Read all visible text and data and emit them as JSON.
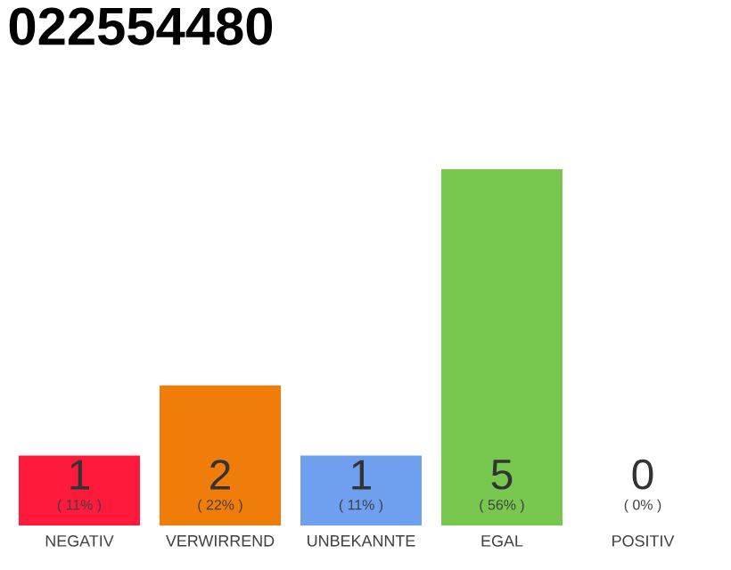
{
  "chart_data": {
    "type": "bar",
    "title": "022554480",
    "categories": [
      "NEGATIV",
      "VERWIRREND",
      "UNBEKANNTE",
      "EGAL",
      "POSITIV"
    ],
    "values": [
      11,
      22,
      11,
      56,
      0
    ],
    "colors": [
      "#ff1a3c",
      "#f07d0a",
      "#6fa0f0",
      "#78c850",
      "#cccccc"
    ],
    "value_labels": [
      "( 11% )",
      "( 22% )",
      "( 11% )",
      "( 56% )",
      "( 0% )"
    ],
    "annotations": [
      "1",
      "2",
      "1",
      "5",
      "0"
    ]
  }
}
